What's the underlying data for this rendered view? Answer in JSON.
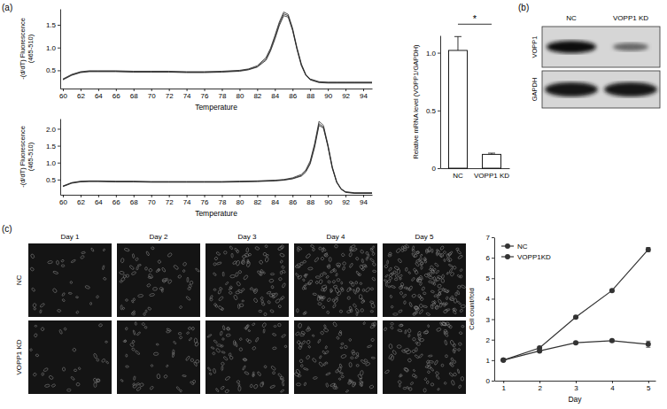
{
  "chart_data": [
    {
      "type": "line",
      "title": "(a)",
      "x": [
        60,
        61,
        62,
        63,
        64,
        66,
        68,
        70,
        72,
        74,
        76,
        78,
        80,
        81,
        82,
        83,
        83.5,
        84,
        84.5,
        85,
        85.5,
        86,
        86.5,
        87,
        87.5,
        88,
        89,
        90,
        91,
        92,
        93,
        94,
        95
      ],
      "series": [
        {
          "color": "#222222",
          "values": [
            0.3,
            0.4,
            0.46,
            0.48,
            0.48,
            0.48,
            0.47,
            0.47,
            0.47,
            0.46,
            0.46,
            0.47,
            0.49,
            0.52,
            0.58,
            0.75,
            0.95,
            1.22,
            1.52,
            1.74,
            1.7,
            1.4,
            0.98,
            0.62,
            0.4,
            0.3,
            0.24,
            0.23,
            0.23,
            0.23,
            0.23,
            0.23,
            0.23
          ]
        },
        {
          "color": "#222222",
          "values": [
            0.29,
            0.39,
            0.45,
            0.47,
            0.47,
            0.47,
            0.46,
            0.46,
            0.46,
            0.45,
            0.45,
            0.46,
            0.48,
            0.51,
            0.57,
            0.72,
            0.92,
            1.18,
            1.48,
            1.7,
            1.67,
            1.38,
            0.96,
            0.6,
            0.39,
            0.29,
            0.23,
            0.22,
            0.22,
            0.22,
            0.22,
            0.22,
            0.22
          ]
        },
        {
          "color": "#222222",
          "values": [
            0.31,
            0.41,
            0.47,
            0.49,
            0.49,
            0.49,
            0.48,
            0.48,
            0.48,
            0.47,
            0.47,
            0.48,
            0.5,
            0.53,
            0.6,
            0.78,
            0.98,
            1.26,
            1.56,
            1.78,
            1.73,
            1.43,
            1.0,
            0.64,
            0.41,
            0.31,
            0.25,
            0.24,
            0.24,
            0.24,
            0.24,
            0.24,
            0.24
          ]
        }
      ],
      "xlim": [
        59.7,
        95
      ],
      "xticks": [
        60,
        62,
        64,
        66,
        68,
        70,
        72,
        74,
        76,
        78,
        80,
        82,
        84,
        86,
        88,
        90,
        92,
        94
      ],
      "ylim": [
        0.1,
        1.85
      ],
      "yticks": [
        0.5,
        {
          "value": 1,
          "label": "1.0"
        },
        1.5
      ],
      "x_label": "Temperature",
      "y_label": "-(d/dT) Fluorescence\n(465-510)"
    },
    {
      "type": "line",
      "x": [
        60,
        61,
        62,
        63,
        64,
        66,
        68,
        70,
        72,
        74,
        76,
        78,
        80,
        82,
        84,
        85,
        86,
        87,
        87.5,
        88,
        88.5,
        89,
        89.5,
        90,
        90.5,
        91,
        91.5,
        92,
        93,
        94,
        95
      ],
      "series": [
        {
          "color": "#222222",
          "values": [
            0.3,
            0.4,
            0.44,
            0.45,
            0.45,
            0.44,
            0.44,
            0.43,
            0.43,
            0.43,
            0.43,
            0.43,
            0.44,
            0.45,
            0.47,
            0.49,
            0.53,
            0.62,
            0.75,
            1.0,
            1.5,
            2.15,
            2.05,
            1.5,
            0.85,
            0.42,
            0.22,
            0.13,
            0.1,
            0.1,
            0.1
          ]
        },
        {
          "color": "#222222",
          "values": [
            0.29,
            0.39,
            0.43,
            0.44,
            0.44,
            0.43,
            0.43,
            0.42,
            0.42,
            0.42,
            0.42,
            0.42,
            0.43,
            0.44,
            0.46,
            0.48,
            0.52,
            0.6,
            0.72,
            0.96,
            1.45,
            2.1,
            2.02,
            1.48,
            0.83,
            0.41,
            0.21,
            0.12,
            0.09,
            0.09,
            0.09
          ]
        },
        {
          "color": "#222222",
          "values": [
            0.31,
            0.41,
            0.45,
            0.46,
            0.46,
            0.45,
            0.45,
            0.44,
            0.44,
            0.44,
            0.44,
            0.44,
            0.45,
            0.46,
            0.48,
            0.5,
            0.55,
            0.65,
            0.78,
            1.05,
            1.56,
            2.22,
            2.1,
            1.54,
            0.88,
            0.44,
            0.23,
            0.14,
            0.11,
            0.11,
            0.11
          ]
        }
      ],
      "xlim": [
        59.7,
        95
      ],
      "xticks": [
        60,
        62,
        64,
        66,
        68,
        70,
        72,
        74,
        76,
        78,
        80,
        82,
        84,
        86,
        88,
        90,
        92,
        94
      ],
      "ylim": [
        0.05,
        2.3
      ],
      "yticks": [
        0.5,
        {
          "value": 1,
          "label": "1.0"
        },
        1.5,
        {
          "value": 2,
          "label": "2.0"
        }
      ],
      "x_label": "Temperature",
      "y_label": "-(d/dT) Fluorescence\n(465-510)"
    },
    {
      "type": "bar",
      "categories": [
        "NC",
        "VOPP1 KD"
      ],
      "values": [
        1.02,
        0.12
      ],
      "errors": [
        0.12,
        0.01
      ],
      "color": "#ffffff",
      "ylim": [
        0,
        1.15
      ],
      "yticks": [
        0,
        0.5,
        {
          "value": 1,
          "label": "1.0"
        }
      ],
      "y_label": "Relative mRNA level (VOPP1/GAPDH)",
      "annotations": [
        "*"
      ]
    },
    {
      "type": "line",
      "x": [
        1,
        2,
        3,
        4,
        5
      ],
      "xlim": [
        0.75,
        5.2
      ],
      "xticks": [
        1,
        2,
        3,
        4,
        5
      ],
      "ylim": [
        0,
        7
      ],
      "yticks": [
        0,
        1,
        2,
        3,
        4,
        5,
        6,
        7
      ],
      "x_label": "Day",
      "y_label": "Cell count/fold",
      "legend": "upper left",
      "marker": "circle",
      "series": [
        {
          "name": "NC",
          "color": "#333333",
          "values": [
            1,
            1.6,
            3.1,
            4.4,
            6.4
          ],
          "errors": [
            0.03,
            0.05,
            0.05,
            0.05,
            0.1
          ]
        },
        {
          "name": "VOPP1KD",
          "color": "#333333",
          "values": [
            1,
            1.45,
            1.85,
            1.95,
            1.78
          ],
          "errors": [
            0.03,
            0.05,
            0.05,
            0.06,
            0.15
          ]
        }
      ]
    }
  ],
  "blot": {
    "label": "(b)",
    "columns": [
      "NC",
      "VOPP1 KD"
    ],
    "rows": [
      "VOPP1",
      "GAPDH"
    ]
  },
  "micrographs": {
    "label": "(c)",
    "columns": [
      "Day 1",
      "Day 2",
      "Day 3",
      "Day 4",
      "Day 5"
    ],
    "rows": [
      "NC",
      "VOPP1 KD"
    ]
  }
}
